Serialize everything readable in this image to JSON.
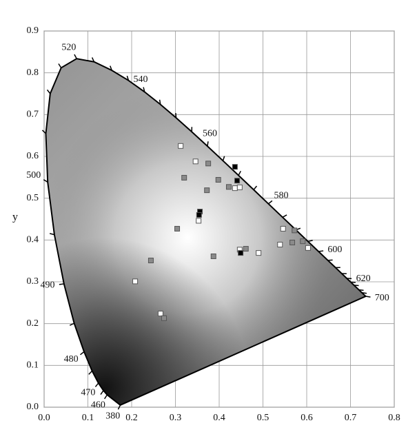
{
  "chart_data": {
    "type": "scatter",
    "y_label": "y",
    "xlim": [
      0,
      0.8
    ],
    "ylim": [
      0,
      0.9
    ],
    "xticks": [
      {
        "value": 0,
        "label": "0.0"
      },
      0.1,
      0.2,
      0.3,
      0.4,
      0.5,
      0.6,
      0.7,
      0.8
    ],
    "yticks": [
      {
        "value": 0,
        "label": "0.0"
      },
      0.1,
      0.2,
      0.3,
      0.4,
      0.5,
      0.6,
      0.7,
      0.8,
      0.9
    ],
    "grid": true,
    "locus": [
      {
        "x": 0.1741,
        "y": 0.005,
        "label": "380"
      },
      {
        "x": 0.144,
        "y": 0.0297,
        "label": "460"
      },
      {
        "x": 0.1355,
        "y": 0.0399
      },
      {
        "x": 0.1241,
        "y": 0.0578,
        "label": "470"
      },
      {
        "x": 0.1096,
        "y": 0.0868
      },
      {
        "x": 0.0913,
        "y": 0.1327,
        "label": "480"
      },
      {
        "x": 0.0687,
        "y": 0.2007
      },
      {
        "x": 0.0454,
        "y": 0.295,
        "label": "490"
      },
      {
        "x": 0.0235,
        "y": 0.4127
      },
      {
        "x": 0.0082,
        "y": 0.5384,
        "label": "500"
      },
      {
        "x": 0.0039,
        "y": 0.6548
      },
      {
        "x": 0.0139,
        "y": 0.7502
      },
      {
        "x": 0.0389,
        "y": 0.812
      },
      {
        "x": 0.0743,
        "y": 0.8338,
        "label": "520"
      },
      {
        "x": 0.1142,
        "y": 0.8262
      },
      {
        "x": 0.1547,
        "y": 0.8059
      },
      {
        "x": 0.1929,
        "y": 0.7816
      },
      {
        "x": 0.2296,
        "y": 0.7543,
        "label": "540"
      },
      {
        "x": 0.2658,
        "y": 0.7243
      },
      {
        "x": 0.3016,
        "y": 0.6923
      },
      {
        "x": 0.3373,
        "y": 0.6589
      },
      {
        "x": 0.3731,
        "y": 0.6245,
        "label": "560"
      },
      {
        "x": 0.4087,
        "y": 0.5896
      },
      {
        "x": 0.4441,
        "y": 0.5547
      },
      {
        "x": 0.4788,
        "y": 0.5202
      },
      {
        "x": 0.5125,
        "y": 0.4866,
        "label": "580"
      },
      {
        "x": 0.5448,
        "y": 0.4544
      },
      {
        "x": 0.5752,
        "y": 0.4242
      },
      {
        "x": 0.6029,
        "y": 0.3965
      },
      {
        "x": 0.627,
        "y": 0.3725,
        "label": "600"
      },
      {
        "x": 0.6482,
        "y": 0.3514
      },
      {
        "x": 0.6658,
        "y": 0.334
      },
      {
        "x": 0.6801,
        "y": 0.3197
      },
      {
        "x": 0.6915,
        "y": 0.3083,
        "label": "620"
      },
      {
        "x": 0.7006,
        "y": 0.2993
      },
      {
        "x": 0.7079,
        "y": 0.292
      },
      {
        "x": 0.719,
        "y": 0.2809
      },
      {
        "x": 0.726,
        "y": 0.274
      },
      {
        "x": 0.7347,
        "y": 0.2653,
        "label": "700"
      }
    ],
    "series": [
      {
        "color": "#ffffff",
        "x": [
          0.312,
          0.346,
          0.436,
          0.447,
          0.353,
          0.546,
          0.447,
          0.49,
          0.539,
          0.603,
          0.208,
          0.266
        ],
        "values": [
          0.625,
          0.588,
          0.524,
          0.526,
          0.446,
          0.427,
          0.377,
          0.369,
          0.389,
          0.381,
          0.301,
          0.224
        ]
      },
      {
        "color": "#8a8a8a",
        "x": [
          0.375,
          0.32,
          0.398,
          0.372,
          0.422,
          0.304,
          0.572,
          0.244,
          0.387,
          0.461,
          0.567,
          0.591,
          0.274
        ],
        "values": [
          0.583,
          0.549,
          0.544,
          0.519,
          0.527,
          0.427,
          0.423,
          0.351,
          0.361,
          0.379,
          0.394,
          0.397,
          0.213
        ]
      },
      {
        "color": "#000000",
        "x": [
          0.436,
          0.441,
          0.356,
          0.354,
          0.449
        ],
        "values": [
          0.575,
          0.542,
          0.468,
          0.46,
          0.369
        ]
      }
    ]
  }
}
